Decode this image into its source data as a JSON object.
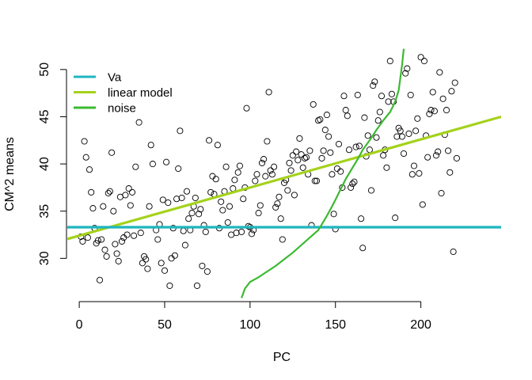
{
  "chart_data": {
    "type": "scatter",
    "title": "",
    "xlabel": "PC",
    "ylabel": "CM^2 means",
    "xlim": [
      -7,
      247
    ],
    "ylim": [
      25.5,
      52.5
    ],
    "x_ticks": [
      0,
      50,
      100,
      150,
      200
    ],
    "y_ticks": [
      30,
      35,
      40,
      45,
      50
    ],
    "grid": false,
    "legend_position": "top-left",
    "legend": [
      {
        "label": "Va",
        "color": "#1fb5c0"
      },
      {
        "label": "linear model",
        "color": "#a4d21b"
      },
      {
        "label": "noise",
        "color": "#3cb931"
      }
    ],
    "lines": {
      "Va": {
        "y": 33.3
      },
      "linear_model": {
        "intercept": 32.4,
        "slope": 0.051
      }
    },
    "noise_curve": [
      [
        95,
        25.8
      ],
      [
        97,
        26.8
      ],
      [
        100,
        27.5
      ],
      [
        105,
        28.0
      ],
      [
        110,
        28.6
      ],
      [
        115,
        29.2
      ],
      [
        120,
        29.9
      ],
      [
        125,
        30.6
      ],
      [
        130,
        31.4
      ],
      [
        135,
        32.2
      ],
      [
        140,
        33.0
      ],
      [
        142,
        33.6
      ],
      [
        145,
        34.5
      ],
      [
        148,
        35.5
      ],
      [
        150,
        36.2
      ],
      [
        153,
        37.3
      ],
      [
        156,
        38.4
      ],
      [
        160,
        39.6
      ],
      [
        163,
        40.5
      ],
      [
        166,
        41.5
      ],
      [
        170,
        42.5
      ],
      [
        174,
        43.6
      ],
      [
        178,
        44.6
      ],
      [
        182,
        45.5
      ],
      [
        185,
        46.6
      ],
      [
        187,
        47.8
      ],
      [
        189,
        50.5
      ],
      [
        190,
        52.2
      ]
    ],
    "points": [
      [
        1,
        32.3
      ],
      [
        2,
        31.8
      ],
      [
        3,
        42.4
      ],
      [
        4,
        40.7
      ],
      [
        5,
        32.2
      ],
      [
        6,
        39.4
      ],
      [
        7,
        37.0
      ],
      [
        8,
        35.3
      ],
      [
        9,
        33.2
      ],
      [
        10,
        31.6
      ],
      [
        11,
        31.9
      ],
      [
        12,
        27.7
      ],
      [
        13,
        32.0
      ],
      [
        14,
        35.5
      ],
      [
        15,
        30.9
      ],
      [
        16,
        30.2
      ],
      [
        17,
        36.9
      ],
      [
        18,
        37.1
      ],
      [
        19,
        41.2
      ],
      [
        20,
        35.0
      ],
      [
        21,
        31.5
      ],
      [
        22,
        30.5
      ],
      [
        23,
        29.7
      ],
      [
        24,
        36.5
      ],
      [
        25,
        31.8
      ],
      [
        26,
        32.2
      ],
      [
        27,
        36.7
      ],
      [
        28,
        32.5
      ],
      [
        29,
        37.4
      ],
      [
        30,
        35.6
      ],
      [
        31,
        37.0
      ],
      [
        32,
        32.4
      ],
      [
        33,
        39.7
      ],
      [
        35,
        44.4
      ],
      [
        36,
        32.7
      ],
      [
        37,
        29.5
      ],
      [
        38,
        30.2
      ],
      [
        39,
        29.9
      ],
      [
        40,
        28.9
      ],
      [
        41,
        35.5
      ],
      [
        42,
        42.0
      ],
      [
        43,
        40.0
      ],
      [
        45,
        33.0
      ],
      [
        46,
        32.0
      ],
      [
        47,
        33.6
      ],
      [
        48,
        29.5
      ],
      [
        49,
        36.2
      ],
      [
        50,
        28.7
      ],
      [
        51,
        40.2
      ],
      [
        52,
        35.9
      ],
      [
        53,
        27.1
      ],
      [
        54,
        30.0
      ],
      [
        55,
        33.2
      ],
      [
        56,
        30.3
      ],
      [
        57,
        36.3
      ],
      [
        58,
        39.5
      ],
      [
        59,
        43.5
      ],
      [
        60,
        36.4
      ],
      [
        61,
        32.9
      ],
      [
        62,
        31.4
      ],
      [
        63,
        37.1
      ],
      [
        64,
        34.2
      ],
      [
        65,
        33.0
      ],
      [
        66,
        34.8
      ],
      [
        67,
        35.5
      ],
      [
        68,
        36.4
      ],
      [
        69,
        27.1
      ],
      [
        70,
        34.7
      ],
      [
        71,
        35.2
      ],
      [
        72,
        29.2
      ],
      [
        73,
        33.5
      ],
      [
        74,
        32.8
      ],
      [
        75,
        28.6
      ],
      [
        76,
        42.5
      ],
      [
        77,
        37.0
      ],
      [
        78,
        38.7
      ],
      [
        79,
        36.8
      ],
      [
        80,
        38.4
      ],
      [
        81,
        42.0
      ],
      [
        82,
        33.2
      ],
      [
        83,
        36.0
      ],
      [
        84,
        35.1
      ],
      [
        85,
        37.1
      ],
      [
        86,
        39.7
      ],
      [
        87,
        33.8
      ],
      [
        88,
        35.5
      ],
      [
        89,
        32.5
      ],
      [
        90,
        37.4
      ],
      [
        91,
        38.3
      ],
      [
        92,
        32.7
      ],
      [
        93,
        39.1
      ],
      [
        94,
        39.8
      ],
      [
        95,
        32.8
      ],
      [
        96,
        36.3
      ],
      [
        97,
        37.5
      ],
      [
        98,
        45.9
      ],
      [
        99,
        33.4
      ],
      [
        100,
        33.3
      ],
      [
        101,
        32.6
      ],
      [
        102,
        33.0
      ],
      [
        103,
        38.2
      ],
      [
        104,
        38.9
      ],
      [
        105,
        34.8
      ],
      [
        106,
        35.6
      ],
      [
        107,
        40.1
      ],
      [
        108,
        40.5
      ],
      [
        109,
        38.7
      ],
      [
        110,
        42.4
      ],
      [
        111,
        47.6
      ],
      [
        112,
        39.3
      ],
      [
        113,
        38.9
      ],
      [
        114,
        39.7
      ],
      [
        115,
        35.4
      ],
      [
        116,
        35.8
      ],
      [
        117,
        36.5
      ],
      [
        118,
        34.2
      ],
      [
        119,
        32.0
      ],
      [
        120,
        38.0
      ],
      [
        121,
        38.3
      ],
      [
        122,
        37.2
      ],
      [
        123,
        40.1
      ],
      [
        124,
        39.3
      ],
      [
        125,
        40.9
      ],
      [
        126,
        36.7
      ],
      [
        127,
        41.3
      ],
      [
        128,
        40.4
      ],
      [
        129,
        42.7
      ],
      [
        130,
        41.0
      ],
      [
        131,
        39.6
      ],
      [
        132,
        40.6
      ],
      [
        133,
        40.7
      ],
      [
        134,
        38.9
      ],
      [
        135,
        41.4
      ],
      [
        136,
        33.5
      ],
      [
        137,
        46.3
      ],
      [
        138,
        38.2
      ],
      [
        139,
        38.2
      ],
      [
        140,
        44.6
      ],
      [
        141,
        44.7
      ],
      [
        142,
        40.6
      ],
      [
        143,
        41.4
      ],
      [
        144,
        43.6
      ],
      [
        145,
        45.2
      ],
      [
        146,
        42.9
      ],
      [
        147,
        41.2
      ],
      [
        148,
        38.9
      ],
      [
        149,
        34.7
      ],
      [
        150,
        33.1
      ],
      [
        151,
        39.5
      ],
      [
        152,
        42.1
      ],
      [
        153,
        39.2
      ],
      [
        154,
        37.5
      ],
      [
        155,
        47.2
      ],
      [
        156,
        45.7
      ],
      [
        157,
        45.1
      ],
      [
        158,
        41.5
      ],
      [
        159,
        37.5
      ],
      [
        160,
        37.9
      ],
      [
        161,
        38.1
      ],
      [
        162,
        41.8
      ],
      [
        163,
        47.3
      ],
      [
        164,
        41.9
      ],
      [
        165,
        34.2
      ],
      [
        166,
        31.1
      ],
      [
        167,
        44.9
      ],
      [
        168,
        40.8
      ],
      [
        169,
        43.0
      ],
      [
        170,
        41.5
      ],
      [
        171,
        37.2
      ],
      [
        172,
        48.3
      ],
      [
        173,
        48.7
      ],
      [
        174,
        42.8
      ],
      [
        175,
        44.6
      ],
      [
        176,
        45.5
      ],
      [
        177,
        47.2
      ],
      [
        178,
        40.9
      ],
      [
        179,
        41.5
      ],
      [
        180,
        39.6
      ],
      [
        181,
        46.6
      ],
      [
        182,
        50.9
      ],
      [
        183,
        47.4
      ],
      [
        184,
        46.6
      ],
      [
        185,
        34.3
      ],
      [
        186,
        42.9
      ],
      [
        187,
        43.8
      ],
      [
        188,
        43.5
      ],
      [
        189,
        42.9
      ],
      [
        190,
        41.1
      ],
      [
        191,
        49.6
      ],
      [
        192,
        50.1
      ],
      [
        193,
        43.2
      ],
      [
        194,
        47.3
      ],
      [
        195,
        38.9
      ],
      [
        196,
        39.8
      ],
      [
        197,
        43.5
      ],
      [
        198,
        44.8
      ],
      [
        199,
        39.0
      ],
      [
        200,
        51.3
      ],
      [
        201,
        35.7
      ],
      [
        202,
        50.9
      ],
      [
        203,
        43.0
      ],
      [
        204,
        40.7
      ],
      [
        205,
        45.3
      ],
      [
        206,
        45.7
      ],
      [
        207,
        47.6
      ],
      [
        208,
        45.6
      ],
      [
        209,
        40.9
      ],
      [
        210,
        41.3
      ],
      [
        211,
        49.7
      ],
      [
        212,
        36.9
      ],
      [
        213,
        46.9
      ],
      [
        214,
        43.1
      ],
      [
        215,
        45.7
      ],
      [
        216,
        41.4
      ],
      [
        217,
        39.1
      ],
      [
        218,
        47.7
      ],
      [
        219,
        30.7
      ],
      [
        220,
        48.6
      ],
      [
        221,
        40.6
      ]
    ]
  }
}
